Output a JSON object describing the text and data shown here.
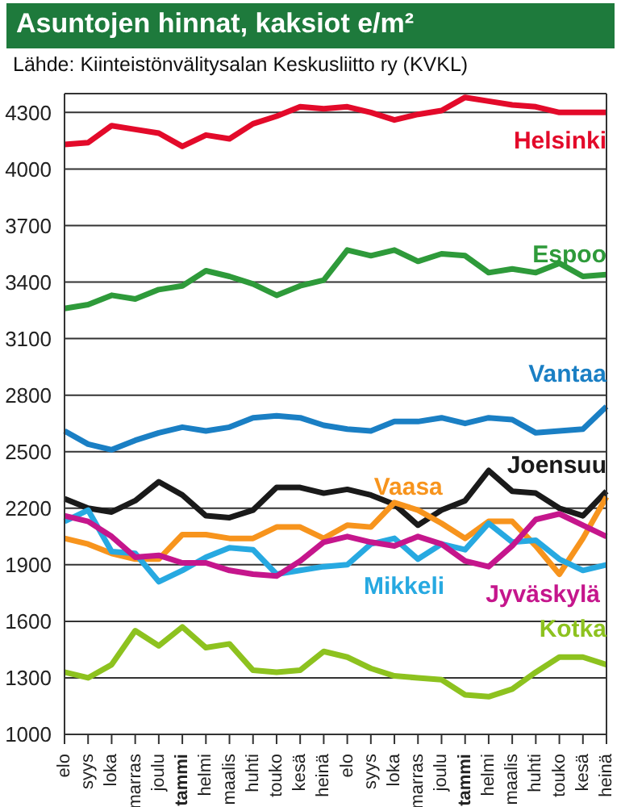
{
  "chart_data": {
    "type": "line",
    "title": "Asuntojen hinnat, kaksiot e/m²",
    "subtitle": "Lähde: Kiinteistönvälitysalan Keskusliitto ry (KVKL)",
    "categories": [
      "elo",
      "syys",
      "loka",
      "marras",
      "joulu",
      "tammi",
      "helmi",
      "maalis",
      "huhti",
      "touko",
      "kesä",
      "heinä",
      "elo",
      "syys",
      "loka",
      "marras",
      "joulu",
      "tammi",
      "helmi",
      "maalis",
      "huhti",
      "touko",
      "kesä",
      "heinä"
    ],
    "series": [
      {
        "name": "Helsinki",
        "color": "#e30a2a",
        "values": [
          4130,
          4140,
          4230,
          4210,
          4190,
          4120,
          4180,
          4160,
          4240,
          4280,
          4330,
          4320,
          4330,
          4300,
          4260,
          4290,
          4310,
          4380,
          4360,
          4340,
          4330,
          4300,
          4300,
          4300
        ]
      },
      {
        "name": "Espoo",
        "color": "#2e9a3a",
        "values": [
          3260,
          3280,
          3330,
          3310,
          3360,
          3380,
          3460,
          3430,
          3390,
          3330,
          3380,
          3410,
          3570,
          3540,
          3570,
          3510,
          3550,
          3540,
          3450,
          3470,
          3450,
          3500,
          3430,
          3440
        ]
      },
      {
        "name": "Vantaa",
        "color": "#1a7fc4",
        "values": [
          2610,
          2540,
          2510,
          2560,
          2600,
          2630,
          2610,
          2630,
          2680,
          2690,
          2680,
          2640,
          2620,
          2610,
          2660,
          2660,
          2680,
          2650,
          2680,
          2670,
          2600,
          2610,
          2620,
          2740
        ]
      },
      {
        "name": "Joensuu",
        "color": "#1a1a1a",
        "values": [
          2250,
          2200,
          2180,
          2240,
          2340,
          2270,
          2160,
          2150,
          2190,
          2310,
          2310,
          2280,
          2300,
          2270,
          2220,
          2110,
          2190,
          2240,
          2400,
          2290,
          2280,
          2200,
          2160,
          2290
        ]
      },
      {
        "name": "Vaasa",
        "color": "#f7941d",
        "values": [
          2040,
          2010,
          1960,
          1930,
          1930,
          2060,
          2060,
          2040,
          2040,
          2100,
          2100,
          2040,
          2110,
          2100,
          2230,
          2190,
          2120,
          2040,
          2130,
          2130,
          2000,
          1850,
          2040,
          2260
        ]
      },
      {
        "name": "Mikkeli",
        "color": "#27a9e1",
        "values": [
          2130,
          2190,
          1970,
          1960,
          1810,
          1870,
          1940,
          1990,
          1980,
          1850,
          1870,
          1890,
          1900,
          2010,
          2040,
          1930,
          2010,
          1980,
          2120,
          2020,
          2030,
          1930,
          1870,
          1900
        ]
      },
      {
        "name": "Jyväskylä",
        "color": "#c5168c",
        "values": [
          2160,
          2130,
          2050,
          1940,
          1950,
          1910,
          1910,
          1870,
          1850,
          1840,
          1920,
          2020,
          2050,
          2020,
          2000,
          2050,
          2010,
          1920,
          1890,
          2000,
          2140,
          2170,
          2110,
          2050
        ]
      },
      {
        "name": "Kotka",
        "color": "#8dc21f",
        "values": [
          1330,
          1300,
          1370,
          1550,
          1470,
          1570,
          1460,
          1480,
          1340,
          1330,
          1340,
          1440,
          1410,
          1350,
          1310,
          1300,
          1290,
          1210,
          1200,
          1240,
          1330,
          1410,
          1410,
          1370
        ]
      }
    ],
    "ylim": [
      1000,
      4400
    ],
    "yticks": [
      1000,
      1300,
      1600,
      1900,
      2200,
      2500,
      2800,
      3100,
      3400,
      3700,
      4000,
      4300
    ],
    "grid": "y",
    "legend": false,
    "marker": "none",
    "line_style": "solid"
  }
}
